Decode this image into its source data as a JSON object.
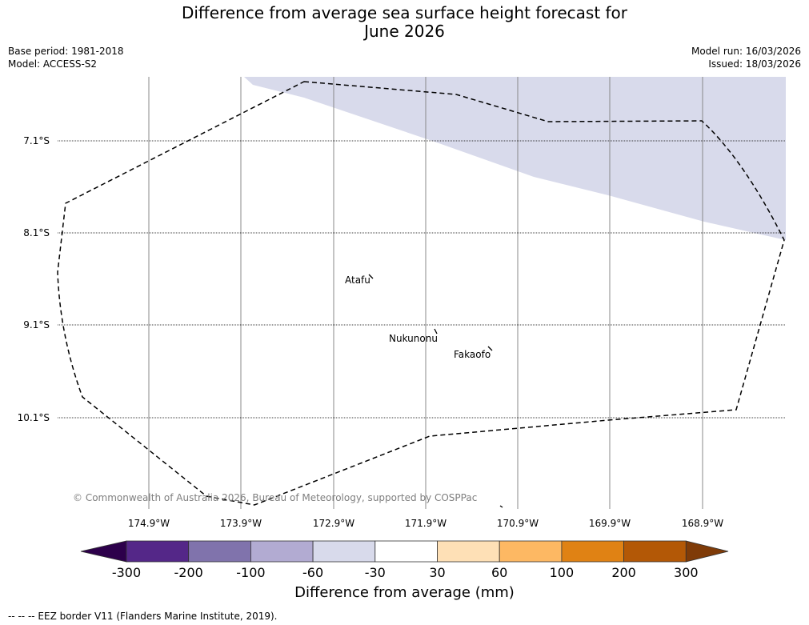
{
  "title_line1": "Difference from average sea surface height forecast for",
  "title_line2": "June 2026",
  "meta": {
    "base_period": "Base period: 1981-2018",
    "model": "Model: ACCESS-S2",
    "model_run": "Model run: 16/03/2026",
    "issued": "Issued: 18/03/2026"
  },
  "map": {
    "lat_labels": [
      "7.1°S",
      "8.1°S",
      "9.1°S",
      "10.1°S"
    ],
    "lon_labels": [
      "174.9°W",
      "173.9°W",
      "172.9°W",
      "171.9°W",
      "170.9°W",
      "169.9°W",
      "168.9°W"
    ],
    "places": [
      "Atafu",
      "Nukunonu",
      "Fakaofo"
    ],
    "copyright": "© Commonwealth of Australia 2026, Bureau of Meteorology, supported by COSPPac"
  },
  "colorbar": {
    "title": "Difference from average (mm)",
    "ticks": [
      "-300",
      "-200",
      "-100",
      "-60",
      "-30",
      "30",
      "60",
      "100",
      "200",
      "300"
    ],
    "colors": [
      "#2d004b",
      "#542788",
      "#8073ac",
      "#b2abd2",
      "#d8daeb",
      "#ffffff",
      "#fee0b6",
      "#fdb863",
      "#e08214",
      "#b35806",
      "#7f3b08"
    ]
  },
  "footer": "--  --  -- EEZ border V11 (Flanders Marine Institute, 2019)."
}
